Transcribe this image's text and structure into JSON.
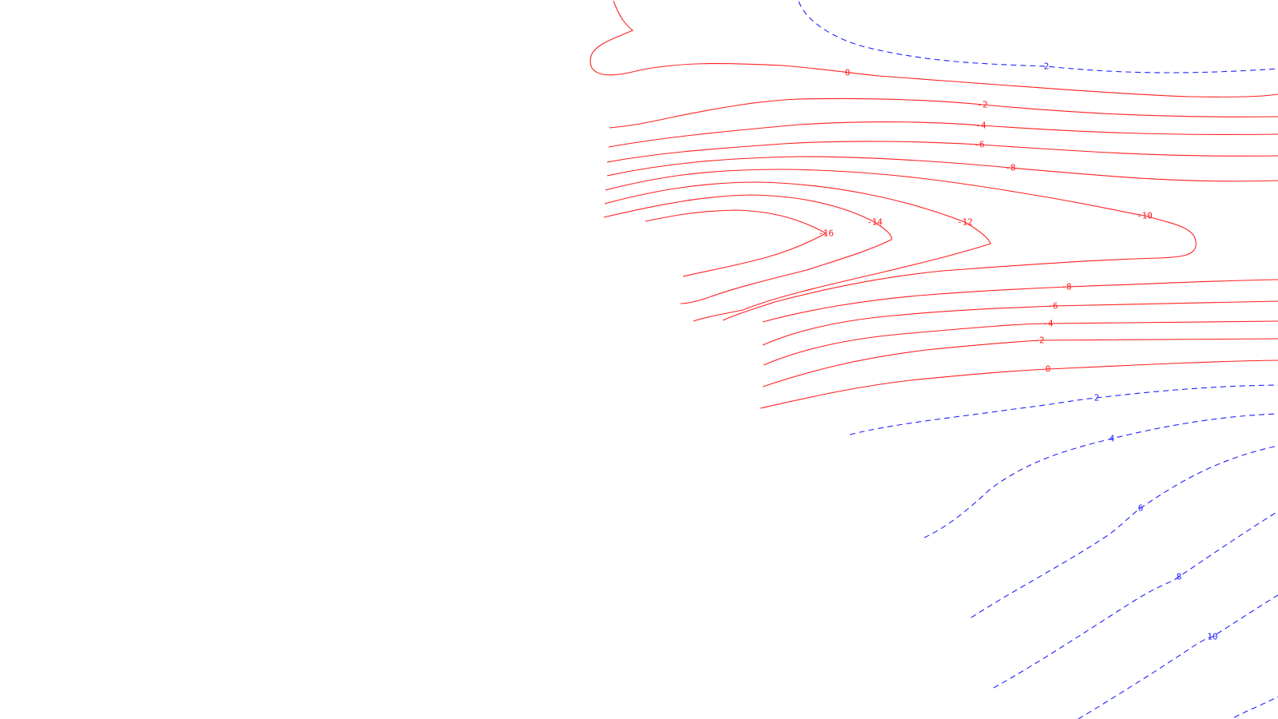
{
  "chart_data": {
    "type": "contour",
    "title": "",
    "xlabel": "",
    "ylabel": "",
    "grid": false,
    "legend": "none",
    "colors": {
      "negative_solid": "#ff2020",
      "positive_dashed": "#2020ff"
    },
    "contour_levels": [
      {
        "level": 2,
        "label": "2",
        "style": "dashed",
        "id": "c-p2-top"
      },
      {
        "level": 0,
        "label": "0",
        "style": "solid",
        "id": "c-0-top"
      },
      {
        "level": -2,
        "label": "-2",
        "style": "solid",
        "id": "c-n2-top"
      },
      {
        "level": -4,
        "label": "-4",
        "style": "solid",
        "id": "c-n4-top"
      },
      {
        "level": -6,
        "label": "-6",
        "style": "solid",
        "id": "c-n6-top"
      },
      {
        "level": -8,
        "label": "-8",
        "style": "solid",
        "id": "c-n8-top"
      },
      {
        "level": -10,
        "label": "-10",
        "style": "solid",
        "id": "c-n10"
      },
      {
        "level": -12,
        "label": "-12",
        "style": "solid",
        "id": "c-n12"
      },
      {
        "level": -14,
        "label": "-14",
        "style": "solid",
        "id": "c-n14"
      },
      {
        "level": -16,
        "label": "-16",
        "style": "solid",
        "id": "c-n16"
      },
      {
        "level": -8,
        "label": "-8",
        "style": "solid",
        "id": "c-n8-bot"
      },
      {
        "level": -6,
        "label": "-6",
        "style": "solid",
        "id": "c-n6-bot"
      },
      {
        "level": -4,
        "label": "-4",
        "style": "solid",
        "id": "c-n4-bot"
      },
      {
        "level": -2,
        "label": "-2",
        "style": "solid",
        "id": "c-n2-bot"
      },
      {
        "level": 0,
        "label": "0",
        "style": "solid",
        "id": "c-0-bot"
      },
      {
        "level": 2,
        "label": "2",
        "style": "dashed",
        "id": "c-p2-bot"
      },
      {
        "level": 4,
        "label": "4",
        "style": "dashed",
        "id": "c-p4"
      },
      {
        "level": 6,
        "label": "6",
        "style": "dashed",
        "id": "c-p6"
      },
      {
        "level": 8,
        "label": "8",
        "style": "dashed",
        "id": "c-p8"
      },
      {
        "level": 10,
        "label": "10",
        "style": "dashed",
        "id": "c-p10"
      }
    ]
  }
}
